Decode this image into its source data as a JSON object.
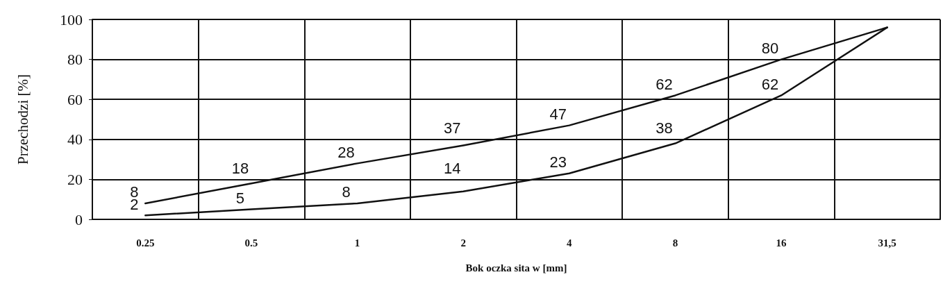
{
  "chart_data": {
    "type": "line",
    "xlabel": "Bok oczka sita w [mm]",
    "ylabel": "Przechodzi [%]",
    "categories": [
      "0.25",
      "0.5",
      "1",
      "2",
      "4",
      "8",
      "16",
      "31,5"
    ],
    "series": [
      {
        "color": "#111111",
        "values": [
          8,
          18,
          28,
          37,
          47,
          62,
          80,
          96
        ],
        "value_labels": [
          "8",
          "18",
          "28",
          "37",
          "47",
          "62",
          "80",
          null
        ]
      },
      {
        "color": "#111111",
        "values": [
          2,
          5,
          8,
          14,
          23,
          38,
          62,
          96
        ],
        "value_labels": [
          "2",
          "5",
          "8",
          "14",
          "23",
          "38",
          "62",
          null
        ]
      }
    ],
    "ylim": [
      0,
      100
    ],
    "yticks": [
      0,
      20,
      40,
      60,
      80,
      100
    ],
    "grid": true,
    "marker": "none",
    "line_style": "solid"
  }
}
